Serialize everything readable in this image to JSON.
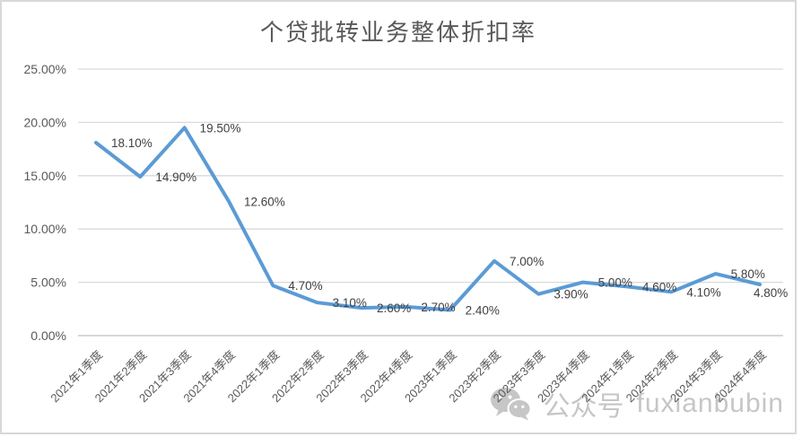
{
  "title": "个贷批转业务整体折扣率",
  "watermark": {
    "icon": "wechat-icon",
    "account_label": "公众号",
    "account_name": "fuxianbubin"
  },
  "chart_data": {
    "type": "line",
    "title": "个贷批转业务整体折扣率",
    "categories": [
      "2021年1季度",
      "2021年2季度",
      "2021年3季度",
      "2021年4季度",
      "2022年1季度",
      "2022年2季度",
      "2022年3季度",
      "2022年4季度",
      "2023年1季度",
      "2023年2季度",
      "2023年3季度",
      "2023年4季度",
      "2024年1季度",
      "2024年2季度",
      "2024年3季度",
      "2024年4季度"
    ],
    "values": [
      18.1,
      14.9,
      19.5,
      12.6,
      4.7,
      3.1,
      2.6,
      2.7,
      2.4,
      7.0,
      3.9,
      5.0,
      4.6,
      4.1,
      5.8,
      4.8
    ],
    "data_labels": [
      "18.10%",
      "14.90%",
      "19.50%",
      "12.60%",
      "4.70%",
      "3.10%",
      "2.60%",
      "2.70%",
      "2.40%",
      "7.00%",
      "3.90%",
      "5.00%",
      "4.60%",
      "4.10%",
      "5.80%",
      "4.80%"
    ],
    "y_ticks": [
      {
        "value": 0,
        "label": "0.00%"
      },
      {
        "value": 5,
        "label": "5.00%"
      },
      {
        "value": 10,
        "label": "10.00%"
      },
      {
        "value": 15,
        "label": "15.00%"
      },
      {
        "value": 20,
        "label": "20.00%"
      },
      {
        "value": 25,
        "label": "25.00%"
      }
    ],
    "ylim": [
      0,
      25
    ],
    "xlabel": "",
    "ylabel": "",
    "grid": true,
    "legend": "none",
    "colors": {
      "line": "#5B9BD5",
      "gridline": "#D9D9D9",
      "axis_line": "#BFBFBF",
      "tick_label": "#595959",
      "data_label": "#404040",
      "title": "#595959",
      "watermark": "#C6C6C6"
    }
  }
}
